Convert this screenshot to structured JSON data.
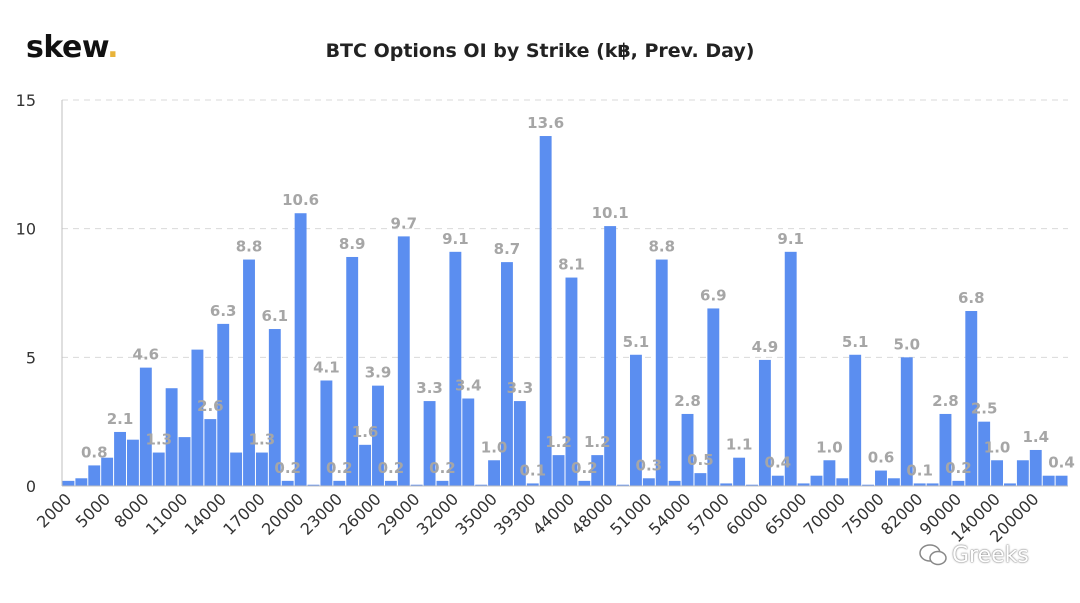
{
  "brand": {
    "name": "skew",
    "dot": "."
  },
  "watermark": {
    "text": "Greeks"
  },
  "colors": {
    "bar": "#5b8ef0",
    "bar_stroke": "#4a7fe0",
    "grid": "#d9d9d9",
    "label": "#a6a6a6"
  },
  "chart_data": {
    "type": "bar",
    "title": "BTC Options OI by Strike (k฿, Prev. Day)",
    "xlabel": "",
    "ylabel": "",
    "ylim": [
      0,
      15
    ],
    "yticks": [
      0,
      5,
      10,
      15
    ],
    "grid": true,
    "xtick_labels": [
      {
        "index": 0,
        "text": "2000"
      },
      {
        "index": 3,
        "text": "5000"
      },
      {
        "index": 6,
        "text": "8000"
      },
      {
        "index": 9,
        "text": "11000"
      },
      {
        "index": 12,
        "text": "14000"
      },
      {
        "index": 15,
        "text": "17000"
      },
      {
        "index": 18,
        "text": "20000"
      },
      {
        "index": 21,
        "text": "23000"
      },
      {
        "index": 24,
        "text": "26000"
      },
      {
        "index": 27,
        "text": "29000"
      },
      {
        "index": 30,
        "text": "32000"
      },
      {
        "index": 33,
        "text": "35000"
      },
      {
        "index": 36,
        "text": "39300"
      },
      {
        "index": 39,
        "text": "44000"
      },
      {
        "index": 42,
        "text": "48000"
      },
      {
        "index": 45,
        "text": "51000"
      },
      {
        "index": 48,
        "text": "54000"
      },
      {
        "index": 51,
        "text": "57000"
      },
      {
        "index": 54,
        "text": "60000"
      },
      {
        "index": 57,
        "text": "65000"
      },
      {
        "index": 60,
        "text": "70000"
      },
      {
        "index": 63,
        "text": "75000"
      },
      {
        "index": 66,
        "text": "82000"
      },
      {
        "index": 69,
        "text": "90000"
      },
      {
        "index": 72,
        "text": "140000"
      },
      {
        "index": 75,
        "text": "200000"
      }
    ],
    "values": [
      0.2,
      0.3,
      0.8,
      1.1,
      2.1,
      1.8,
      4.6,
      1.3,
      3.8,
      1.9,
      5.3,
      2.6,
      6.3,
      1.3,
      8.8,
      1.3,
      6.1,
      0.2,
      10.6,
      0.05,
      4.1,
      0.2,
      8.9,
      1.6,
      3.9,
      0.2,
      9.7,
      0.05,
      3.3,
      0.2,
      9.1,
      3.4,
      0.05,
      1.0,
      8.7,
      3.3,
      0.1,
      13.6,
      1.2,
      8.1,
      0.2,
      1.2,
      10.1,
      0.05,
      5.1,
      0.3,
      8.8,
      0.2,
      2.8,
      0.5,
      6.9,
      0.1,
      1.1,
      0.05,
      4.9,
      0.4,
      9.1,
      0.1,
      0.4,
      1.0,
      0.3,
      5.1,
      0.05,
      0.6,
      0.3,
      5.0,
      0.1,
      0.1,
      2.8,
      0.2,
      6.8,
      2.5,
      1.0,
      0.1,
      1.0,
      1.4,
      0.4,
      0.4
    ],
    "data_labels": [
      {
        "index": 2,
        "text": "0.8"
      },
      {
        "index": 4,
        "text": "2.1"
      },
      {
        "index": 6,
        "text": "4.6"
      },
      {
        "index": 7,
        "text": "1.3"
      },
      {
        "index": 11,
        "text": "2.6"
      },
      {
        "index": 12,
        "text": "6.3"
      },
      {
        "index": 14,
        "text": "8.8"
      },
      {
        "index": 15,
        "text": "1.3"
      },
      {
        "index": 16,
        "text": "6.1"
      },
      {
        "index": 17,
        "text": "0.2"
      },
      {
        "index": 18,
        "text": "10.6"
      },
      {
        "index": 20,
        "text": "4.1"
      },
      {
        "index": 21,
        "text": "0.2"
      },
      {
        "index": 22,
        "text": "8.9"
      },
      {
        "index": 23,
        "text": "1.6"
      },
      {
        "index": 24,
        "text": "3.9"
      },
      {
        "index": 25,
        "text": "0.2"
      },
      {
        "index": 26,
        "text": "9.7"
      },
      {
        "index": 28,
        "text": "3.3"
      },
      {
        "index": 29,
        "text": "0.2"
      },
      {
        "index": 30,
        "text": "9.1"
      },
      {
        "index": 31,
        "text": "3.4"
      },
      {
        "index": 33,
        "text": "1.0"
      },
      {
        "index": 34,
        "text": "8.7"
      },
      {
        "index": 35,
        "text": "3.3"
      },
      {
        "index": 36,
        "text": "0.1"
      },
      {
        "index": 37,
        "text": "13.6"
      },
      {
        "index": 38,
        "text": "1.2"
      },
      {
        "index": 39,
        "text": "8.1"
      },
      {
        "index": 40,
        "text": "0.2"
      },
      {
        "index": 41,
        "text": "1.2"
      },
      {
        "index": 42,
        "text": "10.1"
      },
      {
        "index": 44,
        "text": "5.1"
      },
      {
        "index": 45,
        "text": "0.3"
      },
      {
        "index": 46,
        "text": "8.8"
      },
      {
        "index": 48,
        "text": "2.8"
      },
      {
        "index": 49,
        "text": "0.5"
      },
      {
        "index": 50,
        "text": "6.9"
      },
      {
        "index": 52,
        "text": "1.1"
      },
      {
        "index": 54,
        "text": "4.9"
      },
      {
        "index": 55,
        "text": "0.4"
      },
      {
        "index": 56,
        "text": "9.1"
      },
      {
        "index": 59,
        "text": "1.0"
      },
      {
        "index": 61,
        "text": "5.1"
      },
      {
        "index": 63,
        "text": "0.6"
      },
      {
        "index": 65,
        "text": "5.0"
      },
      {
        "index": 66,
        "text": "0.1"
      },
      {
        "index": 68,
        "text": "2.8"
      },
      {
        "index": 69,
        "text": "0.2"
      },
      {
        "index": 70,
        "text": "6.8"
      },
      {
        "index": 71,
        "text": "2.5"
      },
      {
        "index": 72,
        "text": "1.0"
      },
      {
        "index": 75,
        "text": "1.4"
      },
      {
        "index": 77,
        "text": "0.4"
      }
    ]
  }
}
